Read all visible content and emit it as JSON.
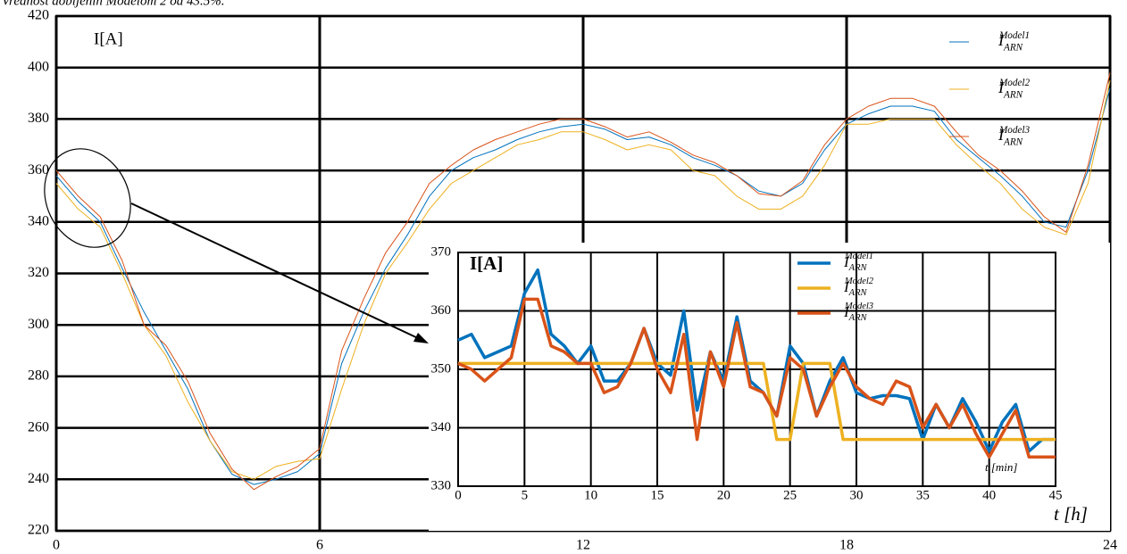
{
  "header_text": "Vrednost dobijenih Modelom 2 od 43.5%.",
  "chart_data": [
    {
      "type": "line",
      "y_label": "I[A]",
      "x_label": "t [h]",
      "legend_symbol": "I",
      "legend_subscript": "ARN",
      "legend": "upper right",
      "grid": true,
      "xlim": [
        0,
        24
      ],
      "xticks": [
        0,
        6,
        12,
        18,
        24
      ],
      "ylim": [
        220,
        420
      ],
      "yticks": [
        220,
        240,
        260,
        280,
        300,
        320,
        340,
        360,
        380,
        400,
        420
      ],
      "x": [
        0,
        0.5,
        1,
        1.5,
        2,
        2.5,
        3,
        3.5,
        4,
        4.5,
        5,
        5.5,
        6,
        6.5,
        7,
        7.5,
        8,
        8.5,
        9,
        9.5,
        10,
        10.5,
        11,
        11.5,
        12,
        12.5,
        13,
        13.5,
        14,
        14.5,
        15,
        15.5,
        16,
        16.5,
        17,
        17.5,
        18,
        18.5,
        19,
        19.5,
        20,
        20.5,
        21,
        21.5,
        22,
        22.5,
        23,
        23.5,
        24
      ],
      "series": [
        {
          "name": "Model1",
          "color": "#0072bd",
          "values": [
            358,
            348,
            340,
            322,
            305,
            290,
            275,
            255,
            242,
            238,
            240,
            243,
            250,
            285,
            305,
            322,
            335,
            350,
            360,
            365,
            368,
            372,
            375,
            377,
            378,
            376,
            372,
            373,
            370,
            365,
            362,
            358,
            352,
            350,
            355,
            368,
            378,
            382,
            385,
            385,
            383,
            372,
            365,
            358,
            350,
            340,
            338,
            360,
            392
          ]
        },
        {
          "name": "Model2",
          "color": "#edb120",
          "values": [
            355,
            345,
            338,
            320,
            300,
            288,
            270,
            255,
            243,
            240,
            245,
            247,
            248,
            275,
            300,
            320,
            332,
            345,
            355,
            360,
            365,
            370,
            372,
            375,
            375,
            372,
            368,
            370,
            368,
            360,
            358,
            350,
            345,
            345,
            350,
            362,
            378,
            378,
            380,
            380,
            380,
            370,
            362,
            355,
            345,
            338,
            335,
            355,
            395
          ]
        },
        {
          "name": "Model3",
          "color": "#d95319",
          "values": [
            360,
            350,
            342,
            325,
            300,
            292,
            278,
            258,
            244,
            236,
            241,
            245,
            252,
            290,
            310,
            328,
            340,
            355,
            362,
            368,
            372,
            375,
            378,
            380,
            380,
            377,
            373,
            375,
            371,
            366,
            363,
            358,
            351,
            350,
            356,
            370,
            380,
            385,
            388,
            388,
            385,
            375,
            366,
            360,
            352,
            342,
            336,
            362,
            398
          ]
        }
      ]
    },
    {
      "type": "line",
      "y_label": "I[A]",
      "x_label": "t [min]",
      "legend_symbol": "I",
      "legend_subscript": "ARN",
      "legend": "upper center",
      "grid": true,
      "xlim": [
        0,
        45
      ],
      "xticks": [
        0,
        5,
        10,
        15,
        20,
        25,
        30,
        35,
        40,
        45
      ],
      "ylim": [
        330,
        370
      ],
      "yticks": [
        330,
        340,
        350,
        360,
        370
      ],
      "x": [
        0,
        1,
        2,
        3,
        4,
        5,
        6,
        7,
        8,
        9,
        10,
        11,
        12,
        13,
        14,
        15,
        16,
        17,
        18,
        19,
        20,
        21,
        22,
        23,
        24,
        25,
        26,
        27,
        28,
        29,
        30,
        31,
        32,
        33,
        34,
        35,
        36,
        37,
        38,
        39,
        40,
        41,
        42,
        43,
        44,
        45
      ],
      "series": [
        {
          "name": "Model1",
          "color": "#0072bd",
          "values": [
            355,
            356,
            352,
            353,
            354,
            363,
            367,
            356,
            354,
            351,
            354,
            348,
            348,
            351,
            357,
            351,
            349,
            360,
            343,
            353,
            348,
            359,
            348,
            346,
            342,
            354,
            351,
            342,
            348,
            352,
            346,
            345,
            345.5,
            345.5,
            345,
            338,
            344,
            340,
            345,
            341,
            336,
            341,
            344,
            336,
            338,
            338
          ]
        },
        {
          "name": "Model2",
          "color": "#edb120",
          "values": [
            351,
            351,
            351,
            351,
            351,
            351,
            351,
            351,
            351,
            351,
            351,
            351,
            351,
            351,
            351,
            351,
            351,
            351,
            351,
            351,
            351,
            351,
            351,
            351,
            338,
            338,
            351,
            351,
            351,
            338,
            338,
            338,
            338,
            338,
            338,
            338,
            338,
            338,
            338,
            338,
            338,
            338,
            338,
            338,
            338,
            338
          ]
        },
        {
          "name": "Model3",
          "color": "#d95319",
          "values": [
            351,
            350,
            348,
            350,
            352,
            362,
            362,
            354,
            353,
            351,
            351,
            346,
            347,
            351,
            357,
            350,
            346,
            356,
            338,
            353,
            347,
            358,
            347,
            346,
            342,
            352,
            350,
            342,
            347,
            351,
            347,
            345,
            344,
            348,
            347,
            340,
            344,
            340,
            344,
            339,
            335,
            339,
            343,
            335,
            335,
            335
          ]
        }
      ]
    }
  ]
}
